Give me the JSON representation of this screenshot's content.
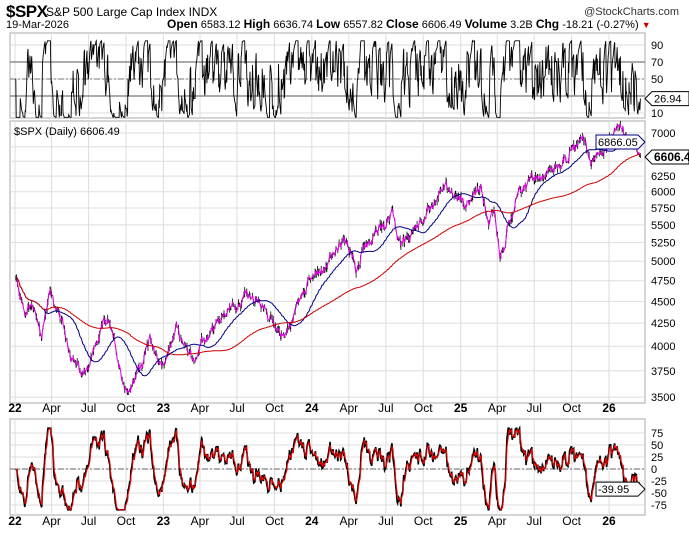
{
  "header": {
    "symbol": "$SPX",
    "name": "S&P 500 Large Cap Index",
    "exchange": "INDX",
    "copyright": "@StockCharts.com",
    "date": "19-Mar-2026",
    "open_label": "Open",
    "open": "6583.12",
    "high_label": "High",
    "high": "6636.74",
    "low_label": "Low",
    "low": "6557.82",
    "close_label": "Close",
    "close": "6606.49",
    "volume_label": "Volume",
    "volume": "3.2B",
    "chg_label": "Chg",
    "chg": "-18.21 (-0.27%)"
  },
  "colors": {
    "price_line": "#e000e0",
    "bars": "#000000",
    "ma_short": "#000080",
    "ma_long": "#cc0000",
    "osc_signal": "#ff0000",
    "grid": "#dddddd"
  },
  "chart_data": [
    {
      "type": "line",
      "panel": "top-oscillator",
      "yticks": [
        "90",
        "70",
        "50",
        "10"
      ],
      "ylim": [
        10,
        90
      ],
      "levels": [
        30,
        50,
        70
      ],
      "last_value": "26.94"
    },
    {
      "type": "candlestick",
      "panel": "price",
      "scale": "log",
      "legend": "$SPX (Daily) 6606.49",
      "yticks": [
        "7000",
        "6250",
        "6000",
        "5750",
        "5500",
        "5250",
        "5000",
        "4750",
        "4500",
        "4250",
        "4000",
        "3750",
        "3500"
      ],
      "ylim": [
        3500,
        7000
      ],
      "xticks": [
        "22",
        "Apr",
        "Jul",
        "Oct",
        "23",
        "Apr",
        "Jul",
        "Oct",
        "24",
        "Apr",
        "Jul",
        "Oct",
        "25",
        "Apr",
        "Jul",
        "Oct",
        "26"
      ],
      "waypoints": [
        [
          "2022-01-03",
          4780
        ],
        [
          "2022-01-27",
          4330
        ],
        [
          "2022-02-10",
          4500
        ],
        [
          "2022-03-08",
          4170
        ],
        [
          "2022-03-29",
          4630
        ],
        [
          "2022-05-20",
          3900
        ],
        [
          "2022-06-16",
          3670
        ],
        [
          "2022-08-16",
          4300
        ],
        [
          "2022-09-30",
          3590
        ],
        [
          "2022-10-12",
          3580
        ],
        [
          "2022-11-30",
          4080
        ],
        [
          "2022-12-28",
          3780
        ],
        [
          "2023-02-02",
          4180
        ],
        [
          "2023-03-13",
          3850
        ],
        [
          "2023-06-15",
          4420
        ],
        [
          "2023-07-31",
          4590
        ],
        [
          "2023-10-27",
          4120
        ],
        [
          "2023-12-28",
          4780
        ],
        [
          "2024-03-28",
          5250
        ],
        [
          "2024-04-19",
          4970
        ],
        [
          "2024-07-16",
          5660
        ],
        [
          "2024-08-05",
          5190
        ],
        [
          "2024-09-06",
          5400
        ],
        [
          "2024-11-11",
          6000
        ],
        [
          "2024-12-06",
          6090
        ],
        [
          "2025-01-13",
          5830
        ],
        [
          "2025-02-19",
          6140
        ],
        [
          "2025-03-13",
          5520
        ],
        [
          "2025-03-25",
          5780
        ],
        [
          "2025-04-08",
          4980
        ],
        [
          "2025-05-20",
          5940
        ],
        [
          "2025-06-30",
          6200
        ],
        [
          "2025-08-29",
          6460
        ],
        [
          "2025-10-28",
          6890
        ],
        [
          "2025-11-20",
          6540
        ],
        [
          "2026-01-27",
          6980
        ],
        [
          "2026-02-25",
          6920
        ],
        [
          "2026-03-19",
          6606.49
        ]
      ],
      "labels": {
        "ma_short": "6866.05",
        "close": "6606.49"
      }
    },
    {
      "type": "line",
      "panel": "bottom-oscillator",
      "yticks": [
        "75",
        "50",
        "25",
        "0",
        "-25",
        "-50",
        "-75"
      ],
      "ylim": [
        -75,
        75
      ],
      "last_value": "-39.95"
    }
  ]
}
